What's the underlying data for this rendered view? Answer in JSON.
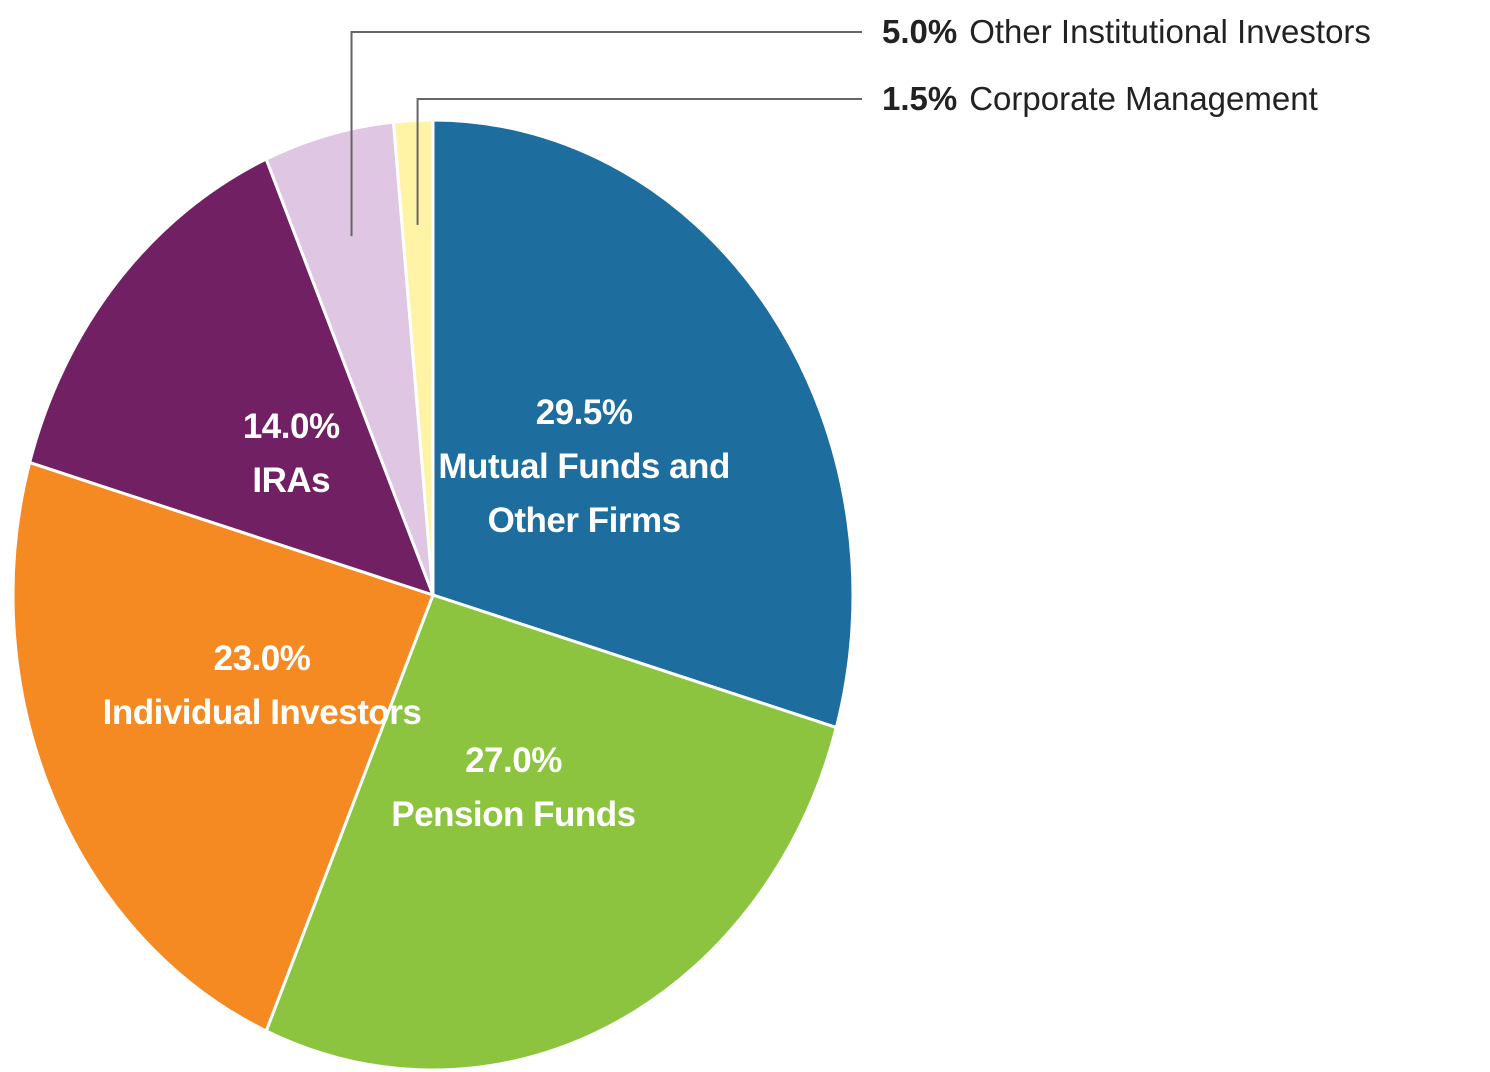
{
  "chart_data": {
    "type": "pie",
    "categories": [
      "Mutual Funds and Other Firms",
      "Pension Funds",
      "Individual Investors",
      "IRAs",
      "Other Institutional Investors",
      "Corporate Management"
    ],
    "values": [
      29.5,
      27.0,
      23.0,
      14.0,
      5.0,
      1.5
    ],
    "value_labels": [
      "29.5%",
      "27.0%",
      "23.0%",
      "14.0%",
      "5.0%",
      "1.5%"
    ],
    "colors": [
      "#1d6d9e",
      "#8cc43f",
      "#f58a22",
      "#702063",
      "#dfc6e2",
      "#fff4a6"
    ]
  }
}
